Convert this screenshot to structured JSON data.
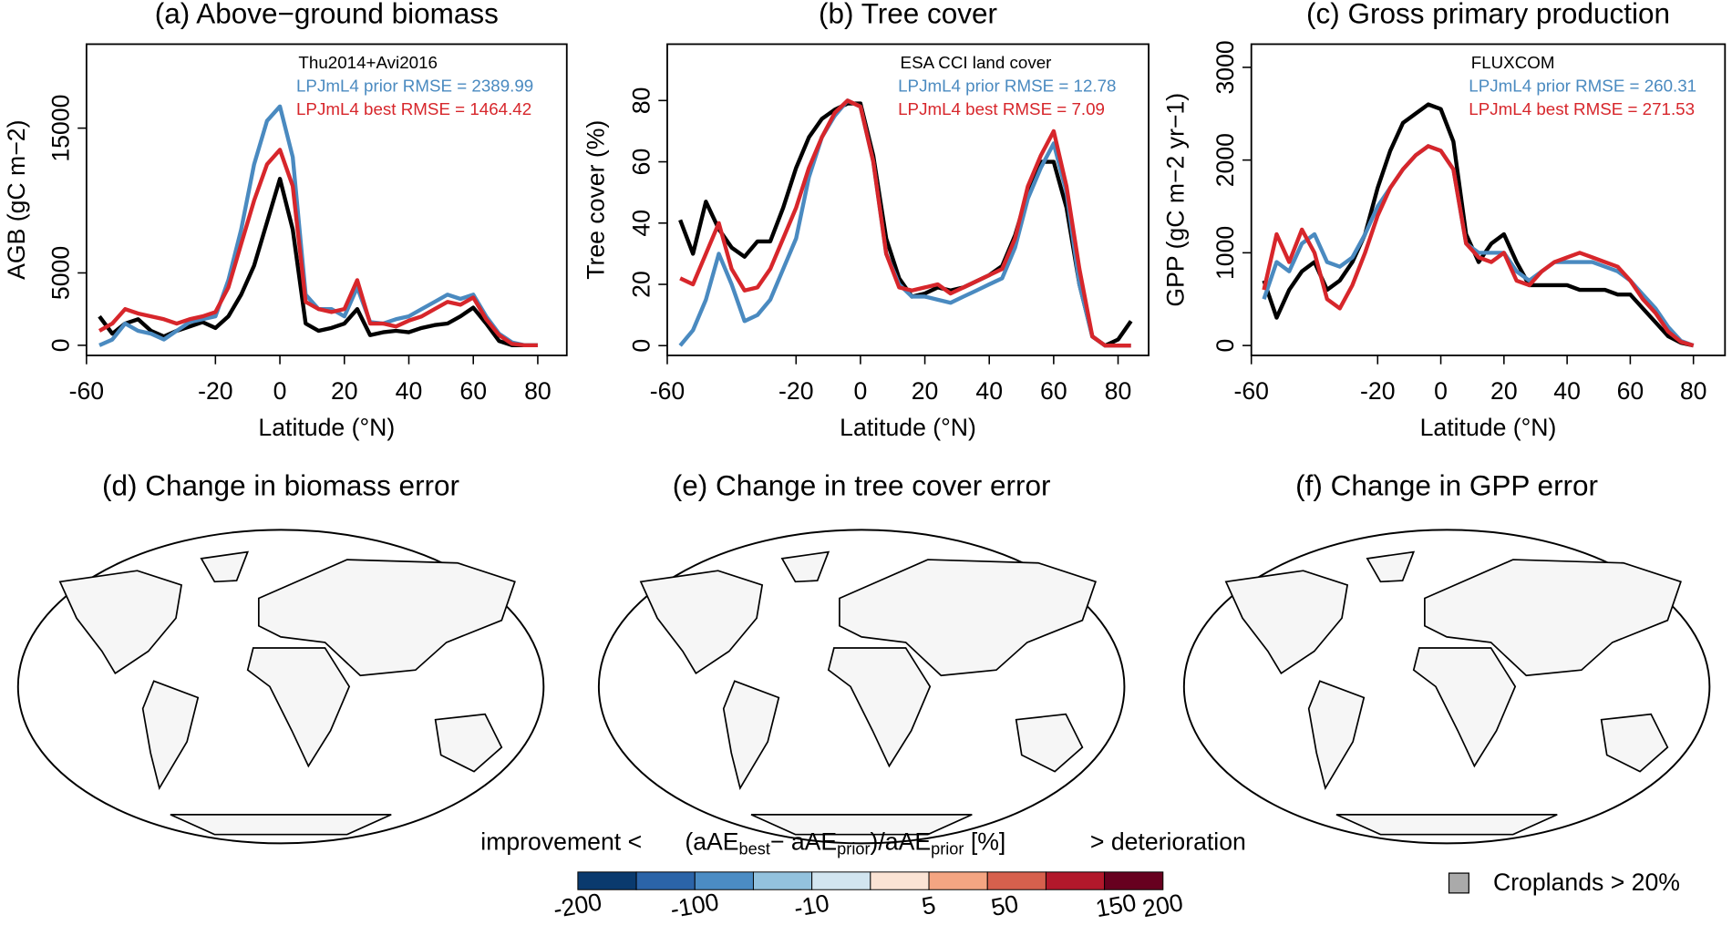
{
  "chart_data": [
    {
      "type": "line",
      "title": "(a) Above−ground biomass",
      "xlabel": "Latitude (°N)",
      "ylabel": "AGB (gC m−2)",
      "xlim": [
        -60,
        89
      ],
      "xticks": [
        -60,
        -20,
        0,
        20,
        40,
        60,
        80
      ],
      "ylim": [
        -700,
        20800
      ],
      "yticks": [
        0,
        5000,
        15000
      ],
      "x": [
        -56,
        -52,
        -48,
        -44,
        -40,
        -36,
        -32,
        -28,
        -24,
        -20,
        -16,
        -12,
        -8,
        -4,
        0,
        4,
        8,
        12,
        16,
        20,
        24,
        28,
        32,
        36,
        40,
        44,
        48,
        52,
        56,
        60,
        64,
        68,
        72,
        76,
        80
      ],
      "series": [
        {
          "name": "Thu2014+Avi2016",
          "color": "#000000",
          "values": [
            2000,
            800,
            1500,
            1800,
            1000,
            600,
            1000,
            1300,
            1600,
            1200,
            2000,
            3500,
            5500,
            8500,
            11500,
            8000,
            1500,
            1000,
            1200,
            1500,
            2500,
            700,
            900,
            1000,
            900,
            1200,
            1400,
            1500,
            2000,
            2600,
            1500,
            300,
            0,
            0,
            0
          ]
        },
        {
          "name": "LPJmL4 prior RMSE = 2389.99",
          "color": "#4a8ac0",
          "values": [
            0,
            400,
            1500,
            1000,
            800,
            400,
            1000,
            1600,
            1800,
            2000,
            4500,
            8000,
            12500,
            15500,
            16500,
            13000,
            3500,
            2500,
            2500,
            2000,
            4000,
            1600,
            1500,
            1800,
            2000,
            2500,
            3000,
            3500,
            3200,
            3500,
            2000,
            800,
            200,
            0,
            0
          ]
        },
        {
          "name": "LPJmL4 best RMSE = 1464.42",
          "color": "#d7262b",
          "values": [
            1000,
            1500,
            2500,
            2200,
            2000,
            1800,
            1500,
            1800,
            2000,
            2300,
            4000,
            7000,
            10000,
            12500,
            13500,
            11000,
            3000,
            2500,
            2300,
            2500,
            4500,
            1500,
            1500,
            1300,
            1700,
            2000,
            2500,
            3000,
            2800,
            3300,
            1800,
            700,
            100,
            0,
            0
          ]
        }
      ]
    },
    {
      "type": "line",
      "title": "(b) Tree cover",
      "xlabel": "Latitude (°N)",
      "ylabel": "Tree cover (%)",
      "xlim": [
        -60,
        89.5
      ],
      "xticks": [
        -60,
        -20,
        0,
        20,
        40,
        60,
        80
      ],
      "ylim": [
        -3.2,
        98.4
      ],
      "yticks": [
        0,
        20,
        40,
        60,
        80
      ],
      "x": [
        -56,
        -52,
        -48,
        -44,
        -40,
        -36,
        -32,
        -28,
        -24,
        -20,
        -16,
        -12,
        -8,
        -4,
        0,
        4,
        8,
        12,
        16,
        20,
        24,
        28,
        32,
        36,
        40,
        44,
        48,
        52,
        56,
        60,
        64,
        68,
        72,
        76,
        80,
        84
      ],
      "series": [
        {
          "name": "ESA CCI land cover",
          "color": "#000000",
          "values": [
            41,
            30,
            47,
            38,
            32,
            29,
            34,
            34,
            45,
            58,
            68,
            74,
            77,
            79,
            79,
            62,
            35,
            22,
            16,
            17,
            19,
            18,
            19,
            21,
            23,
            26,
            36,
            50,
            60,
            60,
            45,
            20,
            3,
            0,
            2,
            8
          ]
        },
        {
          "name": "LPJmL4 prior RMSE = 12.78",
          "color": "#4a8ac0",
          "values": [
            0,
            5,
            15,
            30,
            20,
            8,
            10,
            15,
            25,
            35,
            55,
            68,
            75,
            80,
            78,
            60,
            30,
            20,
            16,
            16,
            15,
            14,
            16,
            18,
            20,
            22,
            32,
            48,
            58,
            66,
            50,
            20,
            3,
            0,
            0,
            0
          ]
        },
        {
          "name": "LPJmL4 best RMSE = 7.09",
          "color": "#d7262b",
          "values": [
            22,
            20,
            30,
            40,
            25,
            18,
            19,
            25,
            35,
            45,
            58,
            68,
            76,
            80,
            78,
            60,
            30,
            19,
            18,
            19,
            20,
            17,
            19,
            21,
            23,
            25,
            35,
            52,
            62,
            70,
            52,
            25,
            3,
            0,
            0,
            0
          ]
        }
      ]
    },
    {
      "type": "line",
      "title": "(c) Gross primary production",
      "xlabel": "Latitude (°N)",
      "ylabel": "GPP (gC m−2 yr−1)",
      "xlim": [
        -60,
        90
      ],
      "xticks": [
        -60,
        -20,
        0,
        20,
        40,
        60,
        80
      ],
      "ylim": [
        -107,
        3250
      ],
      "yticks": [
        0,
        1000,
        2000,
        3000
      ],
      "x": [
        -56,
        -52,
        -48,
        -44,
        -40,
        -36,
        -32,
        -28,
        -24,
        -20,
        -16,
        -12,
        -8,
        -4,
        0,
        4,
        8,
        12,
        16,
        20,
        24,
        28,
        32,
        36,
        40,
        44,
        48,
        52,
        56,
        60,
        64,
        68,
        72,
        76,
        80
      ],
      "series": [
        {
          "name": "FLUXCOM",
          "color": "#000000",
          "values": [
            700,
            300,
            600,
            800,
            900,
            600,
            700,
            900,
            1200,
            1700,
            2100,
            2400,
            2500,
            2600,
            2550,
            2200,
            1200,
            900,
            1100,
            1200,
            900,
            650,
            650,
            650,
            650,
            600,
            600,
            600,
            550,
            550,
            400,
            250,
            100,
            30,
            0
          ]
        },
        {
          "name": "LPJmL4 prior RMSE = 260.31",
          "color": "#4a8ac0",
          "values": [
            500,
            900,
            800,
            1100,
            1200,
            900,
            850,
            950,
            1200,
            1500,
            1700,
            1900,
            2050,
            2150,
            2100,
            1900,
            1100,
            1000,
            1000,
            1000,
            800,
            700,
            800,
            900,
            900,
            900,
            900,
            850,
            800,
            700,
            550,
            400,
            200,
            50,
            0
          ]
        },
        {
          "name": "LPJmL4 best RMSE = 271.53",
          "color": "#d7262b",
          "values": [
            600,
            1200,
            900,
            1250,
            1000,
            500,
            400,
            650,
            1000,
            1400,
            1700,
            1900,
            2050,
            2150,
            2100,
            1900,
            1100,
            950,
            900,
            1000,
            700,
            650,
            800,
            900,
            950,
            1000,
            950,
            900,
            850,
            700,
            500,
            350,
            150,
            40,
            0
          ]
        }
      ]
    }
  ],
  "maps": [
    {
      "title": "(d) Change in biomass error"
    },
    {
      "title": "(e) Change in tree cover error"
    },
    {
      "title": "(f) Change in GPP error"
    }
  ],
  "colorbar": {
    "left_text": "improvement <",
    "label_parts": [
      "(aAE",
      "best",
      "− aAE",
      "prior",
      ")/aAE",
      "prior",
      "  [%]"
    ],
    "right_text": "> deterioration",
    "colors": [
      "#0a3a6e",
      "#2b64a8",
      "#4b8cc4",
      "#93c2de",
      "#d2e5f0",
      "#fbe3d4",
      "#f4a582",
      "#d6604d",
      "#b2182b",
      "#67001f"
    ],
    "ticks": [
      -200,
      -100,
      -10,
      5,
      50,
      150,
      200
    ]
  },
  "cropland_legend": "Croplands > 20%"
}
